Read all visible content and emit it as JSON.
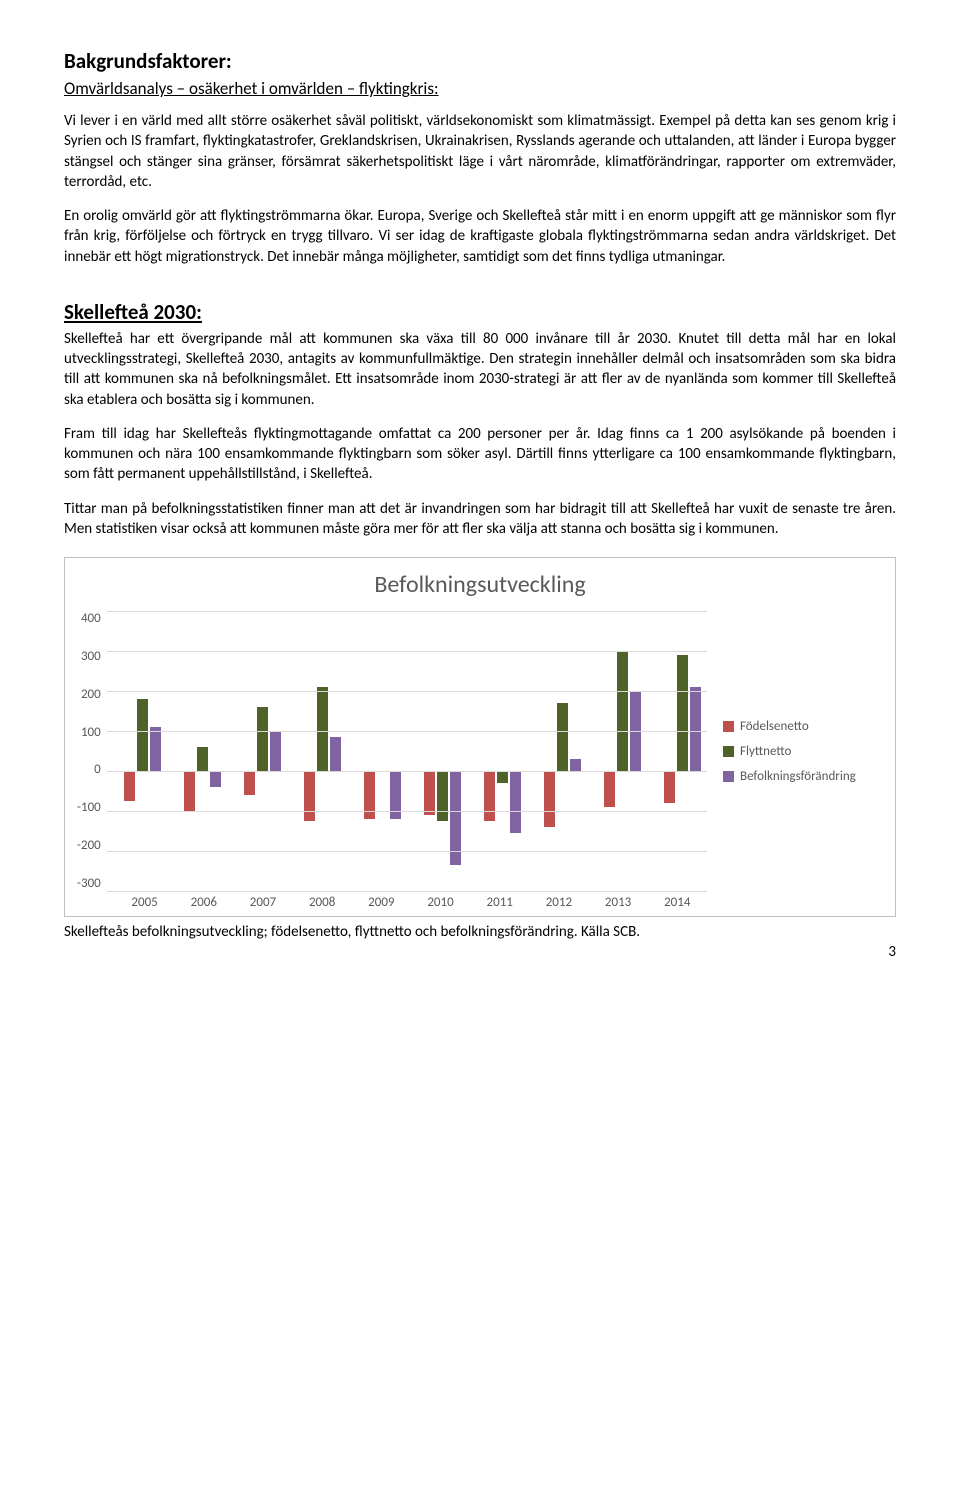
{
  "section1": {
    "title": "Bakgrundsfaktorer:",
    "subtitle": "Omvärldsanalys – osäkerhet i omvärlden – flyktingkris:",
    "p1": "Vi lever i en värld med allt större osäkerhet såväl politiskt, världsekonomiskt som klimatmässigt. Exempel på detta kan ses genom krig i Syrien och IS framfart, flyktingkatastrofer, Greklandskrisen, Ukrainakrisen, Rysslands agerande och uttalanden, att länder i Europa bygger stängsel och stänger sina gränser, försämrat säkerhetspolitiskt läge i vårt närområde, klimatförändringar, rapporter om extremväder, terrordåd, etc.",
    "p2": "En orolig omvärld gör att flyktingströmmarna ökar. Europa, Sverige och Skellefteå står mitt i en enorm uppgift att ge människor som flyr från krig, förföljelse och förtryck en trygg tillvaro. Vi ser idag de kraftigaste globala flyktingströmmarna sedan andra världskriget. Det innebär ett högt migrationstryck. Det innebär många möjligheter, samtidigt som det finns tydliga utmaningar."
  },
  "section2": {
    "title": "Skellefteå 2030:",
    "p1": "Skellefteå har ett övergripande mål att kommunen ska växa till 80 000 invånare till år 2030. Knutet till detta mål har en lokal utvecklingsstrategi, Skellefteå 2030, antagits av kommunfullmäktige. Den strategin innehåller delmål och insatsområden som ska bidra till att kommunen ska nå befolkningsmålet. Ett insatsområde inom 2030-strategi är att fler av de nyanlända som kommer till Skellefteå ska etablera och bosätta sig i kommunen.",
    "p2": "Fram till idag har Skellefteås flyktingmottagande omfattat ca 200 personer per år. Idag finns ca 1 200 asylsökande på boenden i kommunen och nära 100 ensamkommande flyktingbarn som söker asyl. Därtill finns ytterligare ca 100 ensamkommande flyktingbarn, som fått permanent uppehållstillstånd, i Skellefteå.",
    "p3": "Tittar man på befolkningsstatistiken finner man att det är invandringen som har bidragit till att Skellefteå har vuxit de senaste tre åren. Men statistiken visar också att kommunen måste göra mer för att fler ska välja att stanna och bosätta sig i kommunen."
  },
  "chart": {
    "title": "Befolkningsutveckling",
    "ylim": [
      -300,
      400
    ],
    "yticks": [
      400,
      300,
      200,
      100,
      0,
      -100,
      -200,
      -300
    ],
    "grid_color": "#d9d9d9",
    "years": [
      "2005",
      "2006",
      "2007",
      "2008",
      "2009",
      "2010",
      "2011",
      "2012",
      "2013",
      "2014"
    ],
    "series": [
      {
        "name": "Födelsenetto",
        "color": "#c0504d",
        "values": [
          -75,
          -100,
          -60,
          -125,
          -120,
          -110,
          -125,
          -140,
          -90,
          -80
        ]
      },
      {
        "name": "Flyttnetto",
        "color": "#4f6228",
        "values": [
          180,
          60,
          160,
          210,
          0,
          -125,
          -30,
          170,
          300,
          290
        ]
      },
      {
        "name": "Befolkningsförändring",
        "color": "#8064a2",
        "values": [
          110,
          -40,
          100,
          85,
          -120,
          -235,
          -155,
          30,
          200,
          210
        ]
      }
    ],
    "legend_items": [
      "Födelsenetto",
      "Flyttnetto",
      "Befolkningsförändring"
    ],
    "caption": "Skellefteås befolkningsutveckling; födelsenetto, flyttnetto och befolkningsförändring. Källa SCB."
  },
  "page_number": "3"
}
